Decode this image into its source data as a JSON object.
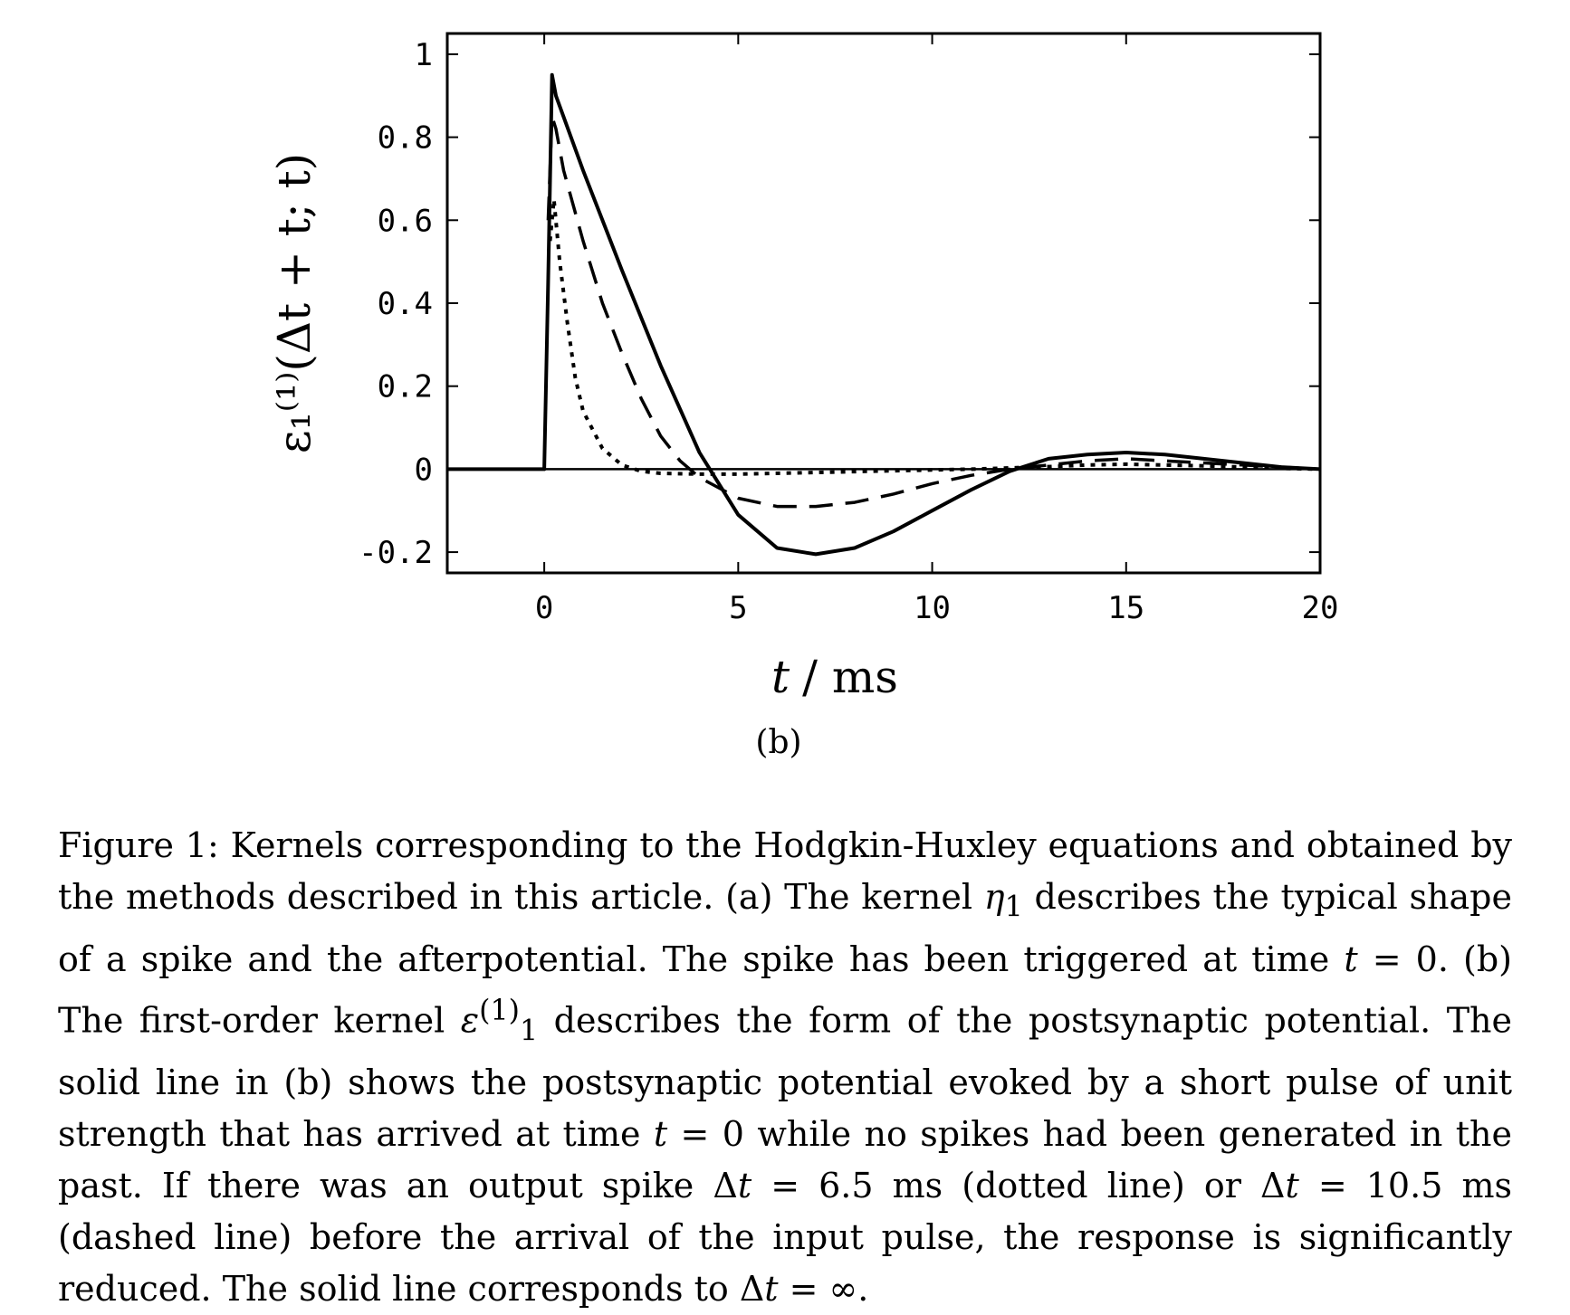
{
  "chart_data": {
    "type": "line",
    "panel_label": "(b)",
    "xlabel_var": "t",
    "xlabel_unit": "/ ms",
    "ylabel": "ε₁⁽¹⁾(Δt + t; t)",
    "xlim": [
      -2.5,
      20
    ],
    "ylim": [
      -0.25,
      1.05
    ],
    "xticks": [
      0,
      5,
      10,
      15,
      20
    ],
    "yticks": [
      -0.2,
      0,
      0.2,
      0.4,
      0.6,
      0.8,
      1
    ],
    "xtick_labels": [
      "0",
      "5",
      "10",
      "15",
      "20"
    ],
    "ytick_labels": [
      "-0.2",
      "0",
      "0.2",
      "0.4",
      "0.6",
      "0.8",
      "1"
    ],
    "zero_line": true,
    "series": [
      {
        "style": "solid",
        "x": [
          -2.5,
          0,
          0.1,
          0.2,
          0.3,
          1,
          2,
          3,
          4,
          5,
          6,
          7,
          8,
          9,
          10,
          11,
          12,
          13,
          14,
          15,
          16,
          17,
          18,
          19,
          20
        ],
        "y": [
          0,
          0,
          0.45,
          0.95,
          0.9,
          0.72,
          0.48,
          0.25,
          0.04,
          -0.11,
          -0.19,
          -0.205,
          -0.19,
          -0.15,
          -0.1,
          -0.05,
          -0.005,
          0.025,
          0.035,
          0.04,
          0.035,
          0.025,
          0.015,
          0.005,
          0
        ]
      },
      {
        "style": "dashed",
        "x": [
          0.1,
          0.2,
          0.3,
          0.5,
          1,
          1.5,
          2,
          2.5,
          3,
          3.5,
          4,
          5,
          6,
          7,
          8,
          9,
          10,
          11,
          12,
          13,
          14,
          15,
          16,
          17,
          18,
          19,
          20
        ],
        "y": [
          0.6,
          0.85,
          0.82,
          0.72,
          0.55,
          0.4,
          0.28,
          0.17,
          0.08,
          0.02,
          -0.02,
          -0.07,
          -0.09,
          -0.09,
          -0.08,
          -0.06,
          -0.035,
          -0.015,
          0,
          0.01,
          0.02,
          0.025,
          0.02,
          0.015,
          0.01,
          0.005,
          0
        ]
      },
      {
        "style": "dotted",
        "x": [
          0.15,
          0.25,
          0.4,
          0.6,
          0.8,
          1,
          1.5,
          2,
          2.5,
          3,
          4,
          5,
          6,
          7,
          8,
          9,
          10,
          11,
          12,
          13,
          14,
          15,
          16,
          17,
          18,
          19,
          20
        ],
        "y": [
          0.55,
          0.65,
          0.5,
          0.35,
          0.22,
          0.14,
          0.05,
          0.01,
          -0.005,
          -0.01,
          -0.012,
          -0.012,
          -0.01,
          -0.008,
          -0.006,
          -0.004,
          -0.002,
          0,
          0.003,
          0.006,
          0.01,
          0.012,
          0.01,
          0.008,
          0.005,
          0.002,
          0
        ]
      }
    ]
  },
  "caption": {
    "fig_label": "Figure 1:",
    "s1": " Kernels corresponding to the Hodgkin-Huxley equations and obtained by the methods described in this article. (a) The kernel ",
    "eta": "η",
    "eta_sub": "1",
    "s2": " describes the typical shape of a spike and the afterpotential. The spike has been triggered at time ",
    "t1": "t",
    "s3": " = 0. (b) The first-order kernel ",
    "eps": "ε",
    "eps_sup": "(1)",
    "eps_sub": "1",
    "s4": " describes the form of the postsynaptic potential. The solid line in (b) shows the postsynaptic potential evoked by a short pulse of unit strength that has arrived at time ",
    "t2": "t",
    "s5": " = 0 while no spikes had been generated in the past. If there was an output spike Δ",
    "t3": "t",
    "s6": " = 6.5 ms (dotted line) or Δ",
    "t4": "t",
    "s7": " = 10.5 ms (dashed line) before the arrival of the input pulse, the response is significantly reduced. The solid line corresponds to Δ",
    "t5": "t",
    "s8": " = ∞."
  }
}
